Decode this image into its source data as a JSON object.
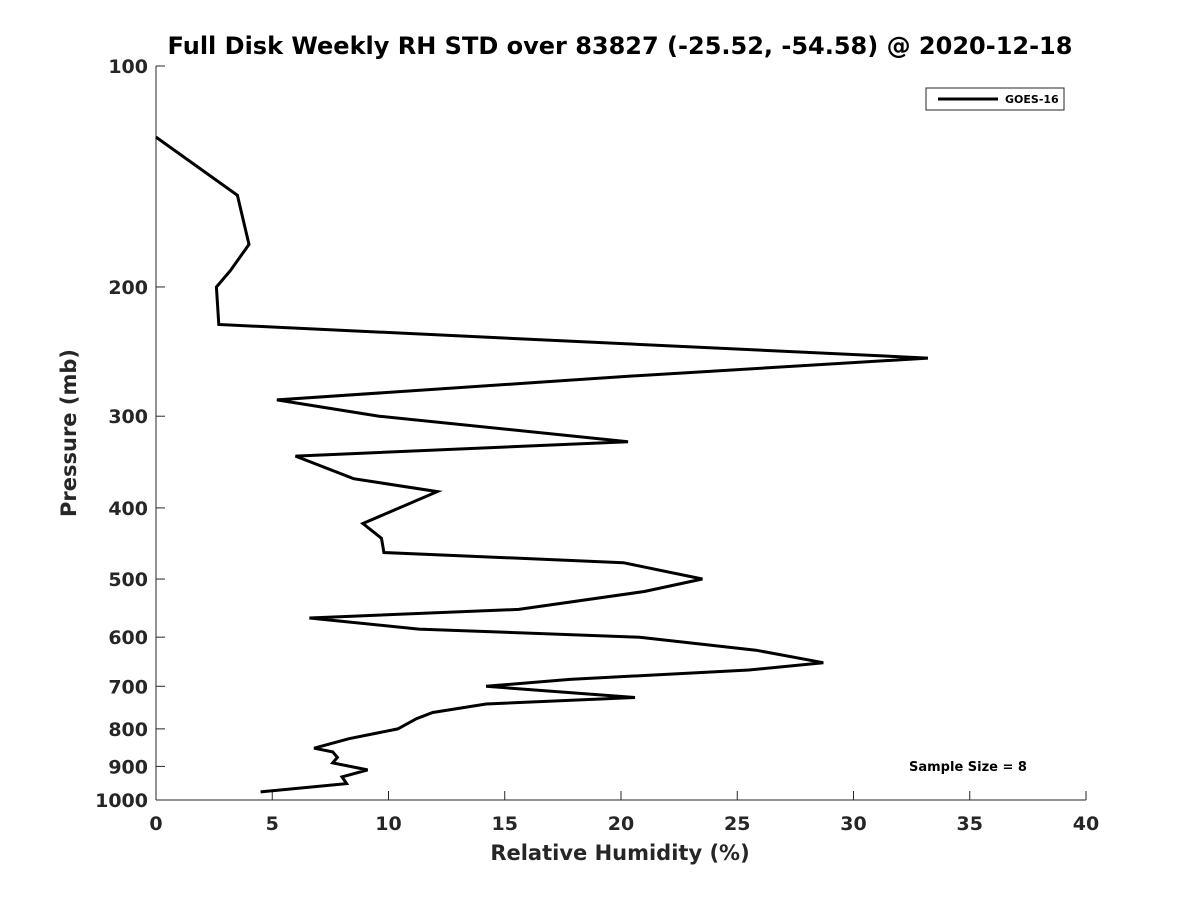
{
  "chart_data": {
    "type": "line",
    "title": "Full Disk Weekly RH STD over 83827 (-25.52, -54.58) @ 2020-12-18",
    "xlabel": "Relative Humidity (%)",
    "ylabel": "Pressure (mb)",
    "xlim": [
      0,
      40
    ],
    "ylim": [
      100,
      1000
    ],
    "y_scale": "log",
    "y_reversed": true,
    "grid": false,
    "legend_position": "top-right",
    "x_ticks": [
      0,
      5,
      10,
      15,
      20,
      25,
      30,
      35,
      40
    ],
    "x_tick_labels": [
      "0",
      "5",
      "10",
      "15",
      "20",
      "25",
      "30",
      "35",
      "40"
    ],
    "y_ticks": [
      100,
      200,
      300,
      400,
      500,
      600,
      700,
      800,
      900,
      1000
    ],
    "y_tick_labels": [
      "100",
      "200",
      "300",
      "400",
      "500",
      "600",
      "700",
      "800",
      "900",
      "1000"
    ],
    "annotation": "Sample Size = 8",
    "series": [
      {
        "name": "GOES-16",
        "color": "#000000",
        "points": [
          {
            "x": 0.0,
            "y": 125
          },
          {
            "x": 3.5,
            "y": 150
          },
          {
            "x": 4.0,
            "y": 175
          },
          {
            "x": 3.2,
            "y": 190
          },
          {
            "x": 2.6,
            "y": 200
          },
          {
            "x": 2.7,
            "y": 225
          },
          {
            "x": 33.2,
            "y": 250
          },
          {
            "x": 20.0,
            "y": 265
          },
          {
            "x": 5.2,
            "y": 285
          },
          {
            "x": 9.6,
            "y": 300
          },
          {
            "x": 20.3,
            "y": 325
          },
          {
            "x": 6.0,
            "y": 340
          },
          {
            "x": 8.5,
            "y": 365
          },
          {
            "x": 12.1,
            "y": 380
          },
          {
            "x": 8.9,
            "y": 420
          },
          {
            "x": 9.7,
            "y": 440
          },
          {
            "x": 9.8,
            "y": 460
          },
          {
            "x": 20.1,
            "y": 475
          },
          {
            "x": 23.5,
            "y": 500
          },
          {
            "x": 21.0,
            "y": 520
          },
          {
            "x": 15.6,
            "y": 550
          },
          {
            "x": 6.6,
            "y": 565
          },
          {
            "x": 11.3,
            "y": 585
          },
          {
            "x": 20.8,
            "y": 600
          },
          {
            "x": 25.8,
            "y": 625
          },
          {
            "x": 28.7,
            "y": 650
          },
          {
            "x": 25.5,
            "y": 665
          },
          {
            "x": 17.8,
            "y": 685
          },
          {
            "x": 14.2,
            "y": 700
          },
          {
            "x": 20.6,
            "y": 725
          },
          {
            "x": 14.2,
            "y": 740
          },
          {
            "x": 11.9,
            "y": 760
          },
          {
            "x": 11.2,
            "y": 775
          },
          {
            "x": 10.4,
            "y": 800
          },
          {
            "x": 8.3,
            "y": 825
          },
          {
            "x": 6.8,
            "y": 850
          },
          {
            "x": 7.6,
            "y": 860
          },
          {
            "x": 7.8,
            "y": 875
          },
          {
            "x": 7.6,
            "y": 890
          },
          {
            "x": 9.1,
            "y": 910
          },
          {
            "x": 8.0,
            "y": 930
          },
          {
            "x": 8.2,
            "y": 950
          },
          {
            "x": 4.5,
            "y": 975
          }
        ]
      }
    ]
  }
}
